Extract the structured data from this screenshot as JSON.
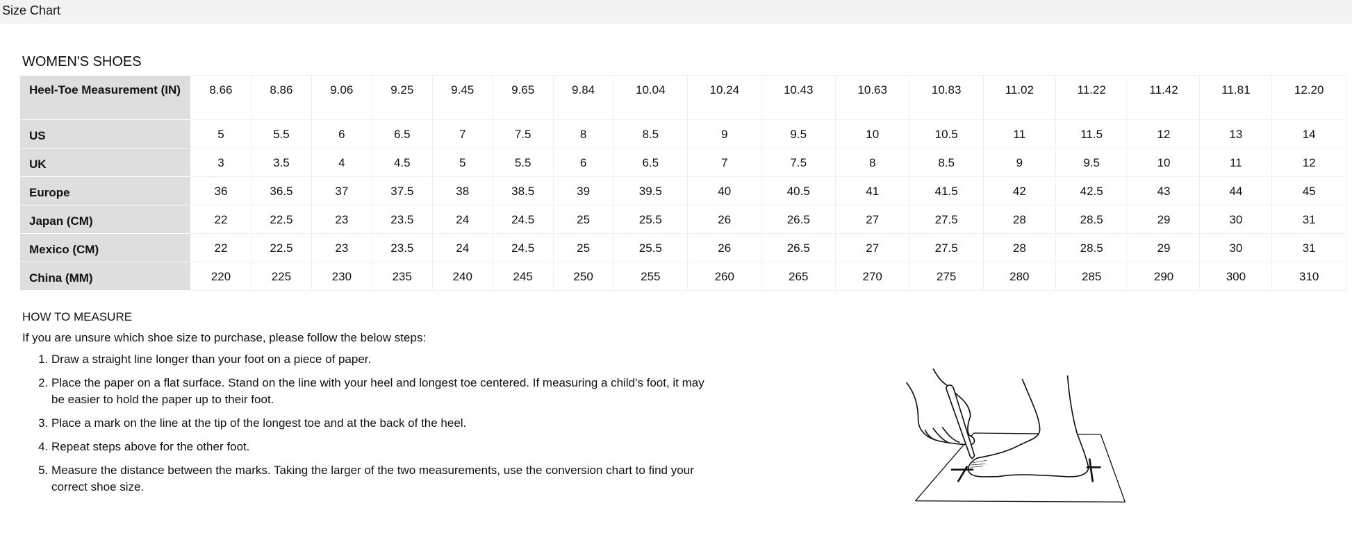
{
  "header": {
    "title": "Size Chart"
  },
  "section_title": "WOMEN'S SHOES",
  "table": {
    "rows": [
      {
        "label": "Heel-Toe Measurement (IN)",
        "values": [
          "8.66",
          "8.86",
          "9.06",
          "9.25",
          "9.45",
          "9.65",
          "9.84",
          "10.04",
          "10.24",
          "10.43",
          "10.63",
          "10.83",
          "11.02",
          "11.22",
          "11.42",
          "11.81",
          "12.20"
        ]
      },
      {
        "label": "US",
        "values": [
          "5",
          "5.5",
          "6",
          "6.5",
          "7",
          "7.5",
          "8",
          "8.5",
          "9",
          "9.5",
          "10",
          "10.5",
          "11",
          "11.5",
          "12",
          "13",
          "14"
        ]
      },
      {
        "label": "UK",
        "values": [
          "3",
          "3.5",
          "4",
          "4.5",
          "5",
          "5.5",
          "6",
          "6.5",
          "7",
          "7.5",
          "8",
          "8.5",
          "9",
          "9.5",
          "10",
          "11",
          "12"
        ]
      },
      {
        "label": "Europe",
        "values": [
          "36",
          "36.5",
          "37",
          "37.5",
          "38",
          "38.5",
          "39",
          "39.5",
          "40",
          "40.5",
          "41",
          "41.5",
          "42",
          "42.5",
          "43",
          "44",
          "45"
        ]
      },
      {
        "label": "Japan (CM)",
        "values": [
          "22",
          "22.5",
          "23",
          "23.5",
          "24",
          "24.5",
          "25",
          "25.5",
          "26",
          "26.5",
          "27",
          "27.5",
          "28",
          "28.5",
          "29",
          "30",
          "31"
        ]
      },
      {
        "label": "Mexico (CM)",
        "values": [
          "22",
          "22.5",
          "23",
          "23.5",
          "24",
          "24.5",
          "25",
          "25.5",
          "26",
          "26.5",
          "27",
          "27.5",
          "28",
          "28.5",
          "29",
          "30",
          "31"
        ]
      },
      {
        "label": "China (MM)",
        "values": [
          "220",
          "225",
          "230",
          "235",
          "240",
          "245",
          "250",
          "255",
          "260",
          "265",
          "270",
          "275",
          "280",
          "285",
          "290",
          "300",
          "310"
        ]
      }
    ]
  },
  "how_to_measure": {
    "title": "HOW TO MEASURE",
    "intro": "If you are unsure which shoe size to purchase, please follow the below steps:",
    "steps": [
      "Draw a straight line longer than your foot on a piece of paper.",
      "Place the paper on a flat surface. Stand on the line with your heel and longest toe centered. If measuring a child's foot, it may be easier to hold the paper up to their foot.",
      "Place a mark on the line at the tip of the longest toe and at the back of the heel.",
      "Repeat steps above for the other foot.",
      "Measure the distance between the marks. Taking the larger of the two measurements, use the conversion chart to find your correct shoe size."
    ],
    "illustration": "foot-measuring-illustration"
  }
}
